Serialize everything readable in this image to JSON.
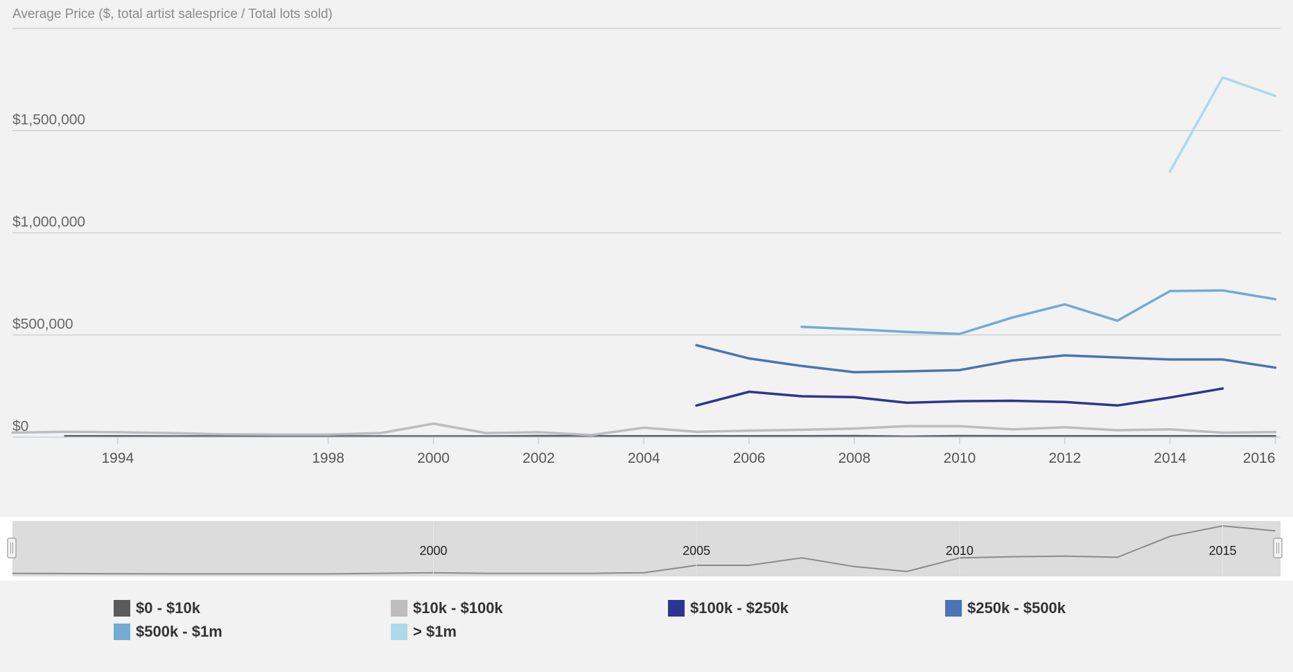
{
  "chart_data": {
    "type": "line",
    "ylabel": "Average Price ($, total artist salesprice / Total lots sold)",
    "y_ticks": [
      "$0",
      "$500,000",
      "$1,000,000",
      "$1,500,000"
    ],
    "y_tick_values": [
      0,
      500000,
      1000000,
      1500000
    ],
    "ylim": [
      0,
      2000000
    ],
    "x_ticks": [
      "1994",
      "1998",
      "2000",
      "2002",
      "2004",
      "2006",
      "2008",
      "2010",
      "2012",
      "2014",
      "2016"
    ],
    "x_tick_values": [
      1994,
      1998,
      2000,
      2002,
      2004,
      2006,
      2008,
      2010,
      2012,
      2014,
      2016
    ],
    "xlim": [
      1992,
      2016.1
    ],
    "grid": true,
    "legend_position": "bottom",
    "series": [
      {
        "name": "$0 - $10k",
        "color": "#5b5b5b",
        "points": [
          [
            1993,
            5000
          ],
          [
            1994,
            5000
          ],
          [
            1995,
            4000
          ],
          [
            1996,
            4000
          ],
          [
            1997,
            4000
          ],
          [
            1998,
            4000
          ],
          [
            1999,
            4000
          ],
          [
            2000,
            4000
          ],
          [
            2001,
            4000
          ],
          [
            2002,
            6000
          ],
          [
            2003,
            5000
          ],
          [
            2004,
            5000
          ],
          [
            2005,
            5000
          ],
          [
            2006,
            5000
          ],
          [
            2007,
            5000
          ],
          [
            2008,
            6000
          ],
          [
            2009,
            3000
          ],
          [
            2010,
            6000
          ],
          [
            2011,
            5000
          ],
          [
            2012,
            5000
          ],
          [
            2013,
            5000
          ],
          [
            2014,
            5000
          ],
          [
            2015,
            5000
          ],
          [
            2016,
            5000
          ]
        ]
      },
      {
        "name": "$10k - $100k",
        "color": "#bdbdbd",
        "points": [
          [
            1992,
            22000
          ],
          [
            1993,
            26000
          ],
          [
            1994,
            24000
          ],
          [
            1995,
            20000
          ],
          [
            1996,
            14000
          ],
          [
            1997,
            13000
          ],
          [
            1998,
            13000
          ],
          [
            1999,
            20000
          ],
          [
            2000,
            66000
          ],
          [
            2001,
            20000
          ],
          [
            2002,
            24000
          ],
          [
            2003,
            10000
          ],
          [
            2004,
            46000
          ],
          [
            2005,
            26000
          ],
          [
            2006,
            32000
          ],
          [
            2007,
            36000
          ],
          [
            2008,
            42000
          ],
          [
            2009,
            54000
          ],
          [
            2010,
            54000
          ],
          [
            2011,
            38000
          ],
          [
            2012,
            48000
          ],
          [
            2013,
            34000
          ],
          [
            2014,
            38000
          ],
          [
            2015,
            22000
          ],
          [
            2016,
            25000
          ]
        ]
      },
      {
        "name": "$100k - $250k",
        "color": "#2d3592",
        "points": [
          [
            2005,
            155000
          ],
          [
            2006,
            222000
          ],
          [
            2007,
            200000
          ],
          [
            2008,
            196000
          ],
          [
            2009,
            168000
          ],
          [
            2010,
            176000
          ],
          [
            2011,
            178000
          ],
          [
            2012,
            172000
          ],
          [
            2013,
            155000
          ],
          [
            2014,
            194000
          ],
          [
            2015,
            238000
          ]
        ]
      },
      {
        "name": "$250k - $500k",
        "color": "#4a74b3",
        "points": [
          [
            2005,
            450000
          ],
          [
            2006,
            385000
          ],
          [
            2007,
            348000
          ],
          [
            2008,
            318000
          ],
          [
            2009,
            322000
          ],
          [
            2010,
            328000
          ],
          [
            2011,
            375000
          ],
          [
            2012,
            400000
          ],
          [
            2013,
            390000
          ],
          [
            2014,
            380000
          ],
          [
            2015,
            380000
          ],
          [
            2016,
            340000
          ]
        ]
      },
      {
        "name": "$500k - $1m",
        "color": "#73abd3",
        "points": [
          [
            2007,
            540000
          ],
          [
            2008,
            528000
          ],
          [
            2009,
            515000
          ],
          [
            2010,
            505000
          ],
          [
            2011,
            585000
          ],
          [
            2012,
            650000
          ],
          [
            2013,
            570000
          ],
          [
            2014,
            715000
          ],
          [
            2015,
            718000
          ],
          [
            2016,
            675000
          ]
        ]
      },
      {
        "name": "> $1m",
        "color": "#acdaea",
        "points": [
          [
            2014,
            1300000
          ],
          [
            2015,
            1760000
          ],
          [
            2016,
            1670000
          ]
        ]
      }
    ],
    "navigator": {
      "ticks": [
        "2000",
        "2005",
        "2010",
        "2015"
      ],
      "tick_values": [
        2000,
        2005,
        2010,
        2015
      ],
      "points": [
        [
          1992,
          5
        ],
        [
          1995,
          4
        ],
        [
          1998,
          4
        ],
        [
          2000,
          6
        ],
        [
          2001,
          5
        ],
        [
          2003,
          5
        ],
        [
          2004,
          6
        ],
        [
          2005,
          18
        ],
        [
          2006,
          18
        ],
        [
          2007,
          30
        ],
        [
          2008,
          16
        ],
        [
          2009,
          8
        ],
        [
          2010,
          30
        ],
        [
          2011,
          32
        ],
        [
          2012,
          33
        ],
        [
          2013,
          31
        ],
        [
          2014,
          65
        ],
        [
          2015,
          82
        ],
        [
          2016,
          74
        ]
      ],
      "ylim": [
        0,
        90
      ]
    }
  }
}
